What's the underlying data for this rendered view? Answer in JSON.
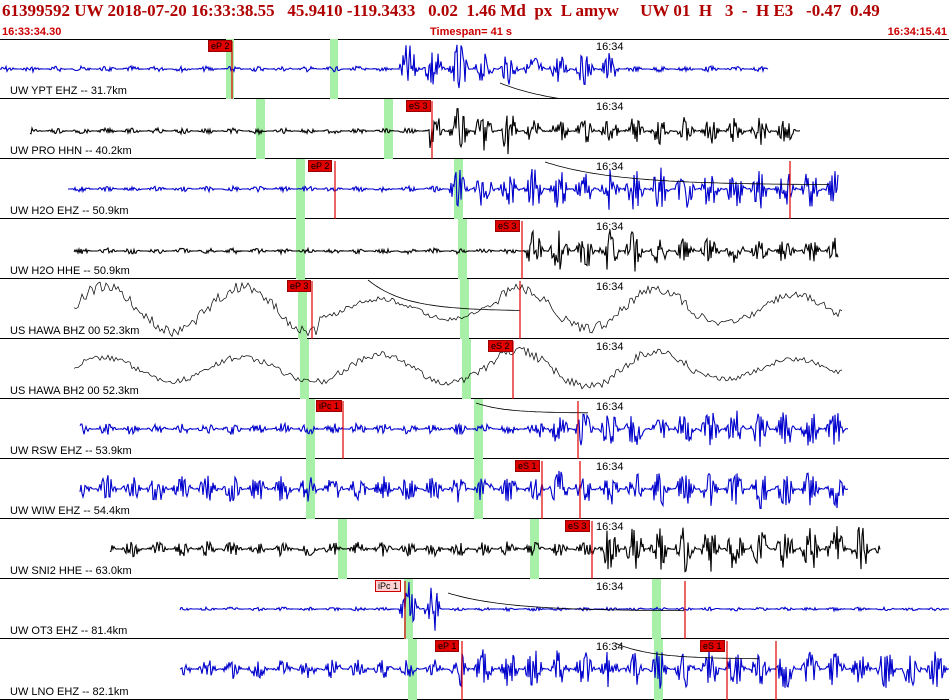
{
  "header": {
    "line": "61399592 UW 2018-07-20 16:33:38.55   45.9410 -119.3433   0.02  1.46 Md  px  L amyw     UW 01  H   3  -  H E3   -0.47  0.49",
    "start_time": "16:33:34.30",
    "timespan": "Timespan=  41 s",
    "end_time": "16:34:15.41"
  },
  "colors": {
    "blue_trace": "#0000cc",
    "black_trace": "#000000",
    "pick_red": "#e00000",
    "window_green": "#a8f0a8",
    "header_red": "#b00000"
  },
  "rows": [
    {
      "label": "UW YPT EHZ -- 31.7km",
      "tick": "16:34",
      "pick": "eP 2",
      "pick2": "",
      "color": "blue"
    },
    {
      "label": "UW PRO HHN -- 40.2km",
      "tick": "16:34",
      "pick": "eS 3",
      "pick2": "",
      "color": "black"
    },
    {
      "label": "UW H2O EHZ -- 50.9km",
      "tick": "16:34",
      "pick": "eP 2",
      "pick2": "",
      "color": "blue"
    },
    {
      "label": "UW H2O HHE -- 50.9km",
      "tick": "16:34",
      "pick": "eS 3",
      "pick2": "",
      "color": "black"
    },
    {
      "label": "US HAWA BHZ 00 52.3km",
      "tick": "16:34",
      "pick": "eP 3",
      "pick2": "",
      "color": "thin"
    },
    {
      "label": "US HAWA BH2 00 52.3km",
      "tick": "16:34",
      "pick": "eS 2",
      "pick2": "",
      "color": "thin"
    },
    {
      "label": "UW RSW EHZ -- 53.9km",
      "tick": "16:34",
      "pick": "iPc 1",
      "pick2": "",
      "color": "blue"
    },
    {
      "label": "UW WIW EHZ -- 54.4km",
      "tick": "16:34",
      "pick": "eS 1",
      "pick2": "",
      "color": "blue"
    },
    {
      "label": "UW SNI2 HHE -- 63.0km",
      "tick": "16:34",
      "pick": "eS 3",
      "pick2": "",
      "color": "black"
    },
    {
      "label": "UW OT3 EHZ -- 81.4km",
      "tick": "16:34",
      "pick": "iPc 1",
      "pick2": "",
      "color": "blue"
    },
    {
      "label": "UW LNO EHZ -- 82.1km",
      "tick": "16:34",
      "pick": "eP 1",
      "pick2": "eS 1",
      "color": "blue"
    }
  ]
}
